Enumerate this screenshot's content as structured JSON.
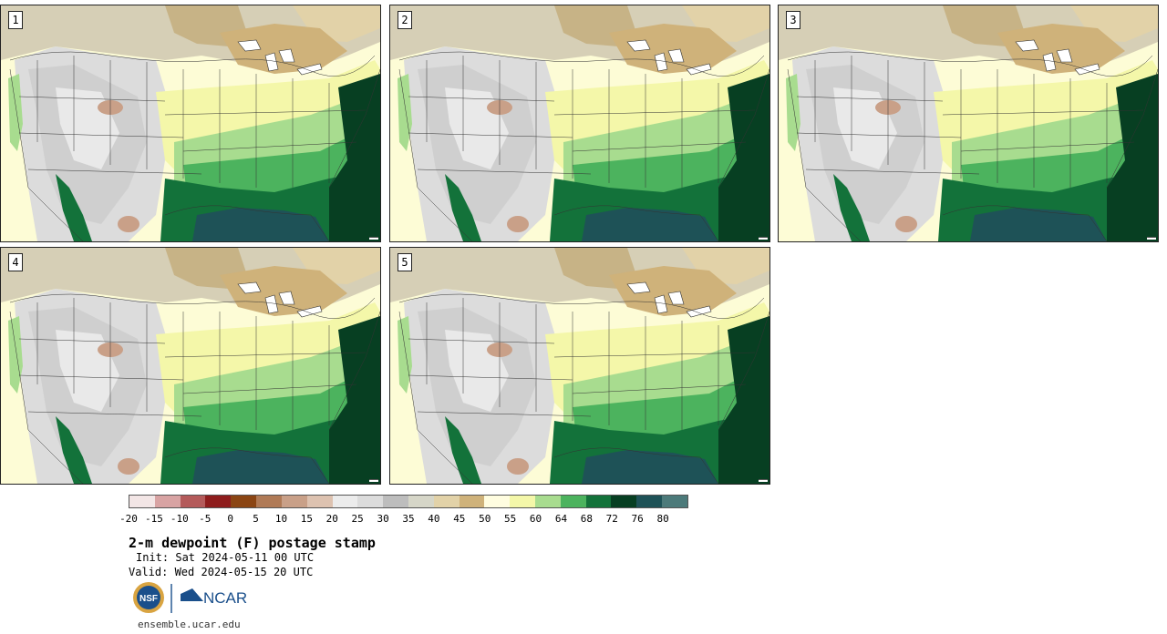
{
  "app": {
    "title": "2-m dewpoint (F) postage stamp",
    "init": "Init: Sat 2024-05-11 00 UTC",
    "valid": "Valid: Wed 2024-05-15 20 UTC",
    "site": "ensemble.ucar.edu",
    "logo_left_text": "NSF",
    "logo_right_text": "NCAR"
  },
  "members": [
    {
      "label": "1"
    },
    {
      "label": "2"
    },
    {
      "label": "3"
    },
    {
      "label": "4"
    },
    {
      "label": "5"
    }
  ],
  "colorbar": {
    "tick_labels": [
      "-20",
      "-15",
      "-10",
      "-5",
      "0",
      "5",
      "10",
      "15",
      "20",
      "25",
      "30",
      "35",
      "40",
      "45",
      "50",
      "55",
      "60",
      "64",
      "68",
      "72",
      "76",
      "80"
    ],
    "colors": [
      "#f3e6e6",
      "#d8a3a3",
      "#b45a5a",
      "#8e1c1c",
      "#8b4513",
      "#b07a56",
      "#c9a088",
      "#ddc2b0",
      "#ececec",
      "#dcdcdc",
      "#bdbdbd",
      "#d6d6c8",
      "#e2d2a8",
      "#cfb27a",
      "#fffde0",
      "#f4f7a9",
      "#a8dc8f",
      "#4cb35e",
      "#13723a",
      "#073f22",
      "#1e5257",
      "#4c7a7a"
    ]
  },
  "palette": {
    "ocean_atlantic": "#073f22",
    "gulf": "#1e5257",
    "pacific": "#fdfcd6",
    "border": "#222222"
  }
}
